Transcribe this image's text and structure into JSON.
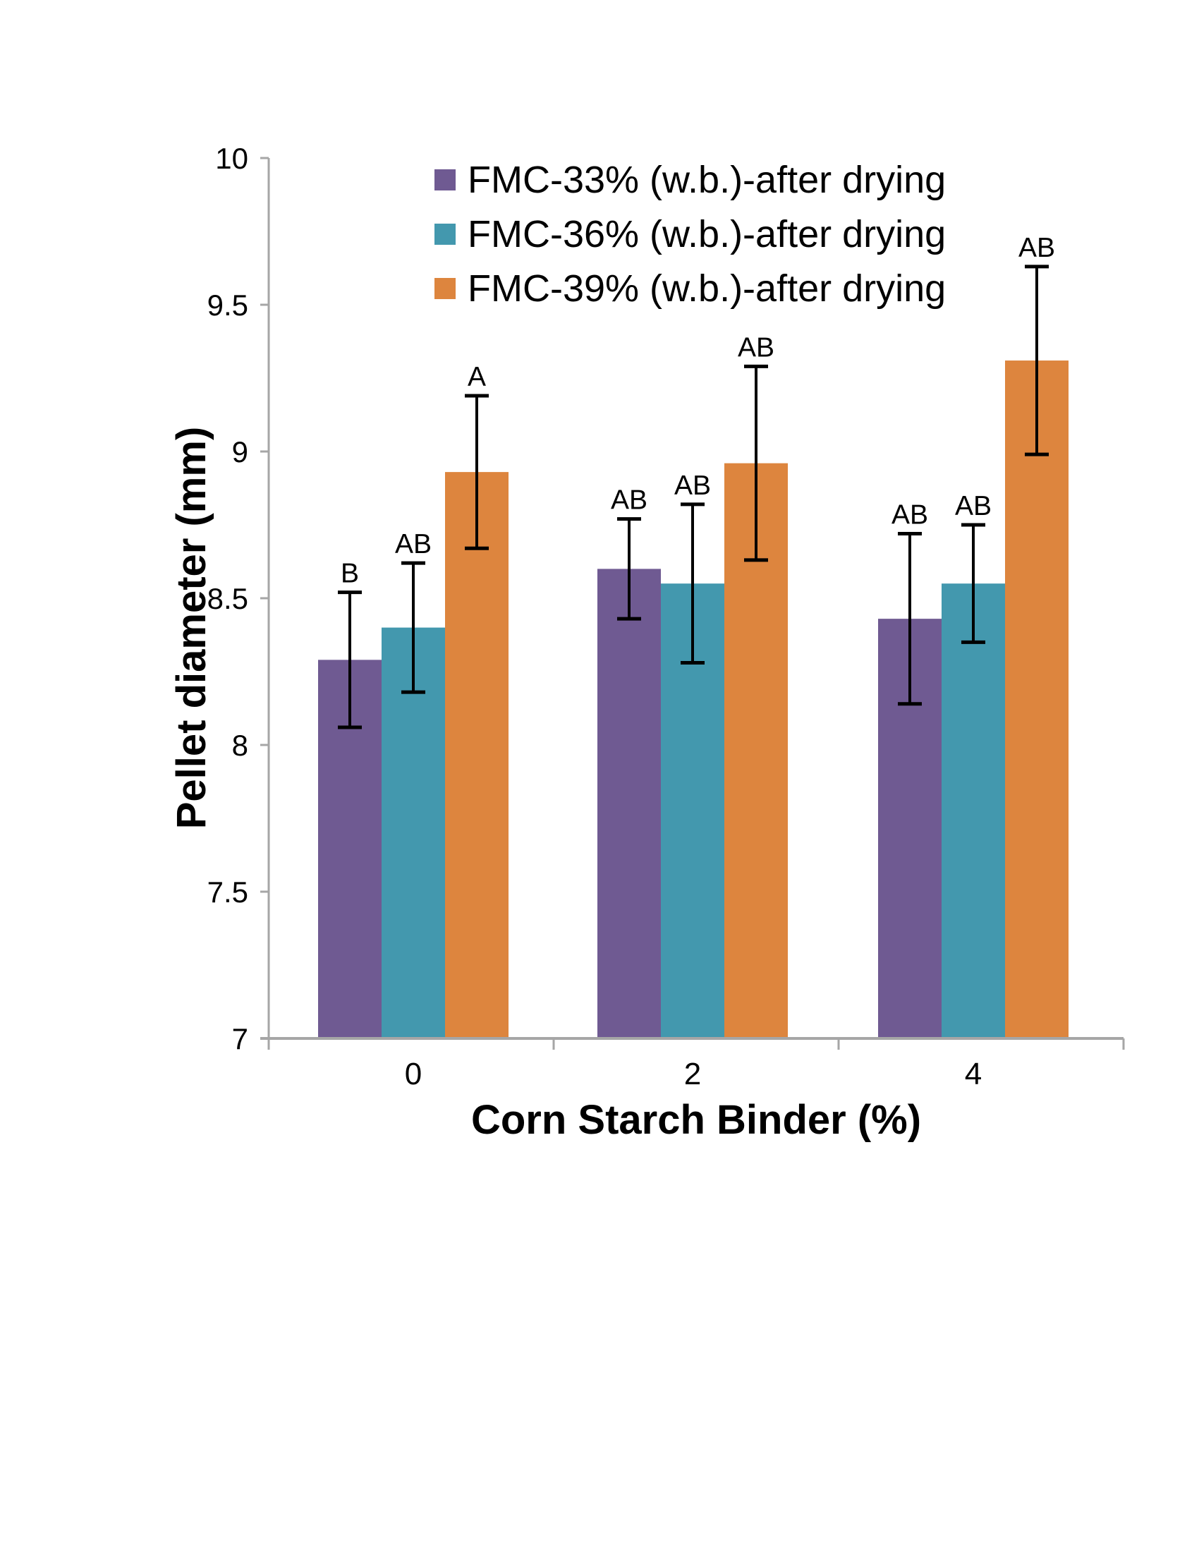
{
  "figure": {
    "background": "#ffffff",
    "text_color": "#000000",
    "axis_color": "#A6A6A6"
  },
  "chart_data": {
    "type": "bar",
    "title": "",
    "xlabel": "Corn Starch Binder (%)",
    "ylabel": "Pellet diameter (mm)",
    "categories": [
      "0",
      "2",
      "4"
    ],
    "series": [
      {
        "name": "FMC-33% (w.b.)-after drying",
        "color": "#6F5A92",
        "values": [
          8.29,
          8.6,
          8.43
        ],
        "errors": [
          0.23,
          0.17,
          0.29
        ],
        "sig_letters": [
          "B",
          "AB",
          "AB"
        ]
      },
      {
        "name": "FMC-36% (w.b.)-after drying",
        "color": "#4398AE",
        "values": [
          8.4,
          8.55,
          8.55
        ],
        "errors": [
          0.22,
          0.27,
          0.2
        ],
        "sig_letters": [
          "AB",
          "AB",
          "AB"
        ]
      },
      {
        "name": "FMC-39% (w.b.)-after drying",
        "color": "#DD853E",
        "values": [
          8.93,
          8.96,
          9.31
        ],
        "errors": [
          0.26,
          0.33,
          0.32
        ],
        "sig_letters": [
          "A",
          "AB",
          "AB"
        ]
      }
    ],
    "ylim": [
      7,
      10
    ],
    "ytick_values": [
      7,
      7.5,
      8,
      8.5,
      9,
      9.5,
      10
    ],
    "ytick_labels": [
      "7",
      "7.5",
      "8",
      "8.5",
      "9",
      "9.5",
      "10"
    ],
    "grid": false,
    "legend_position": "top-center",
    "error_bar_color": "#000000"
  }
}
